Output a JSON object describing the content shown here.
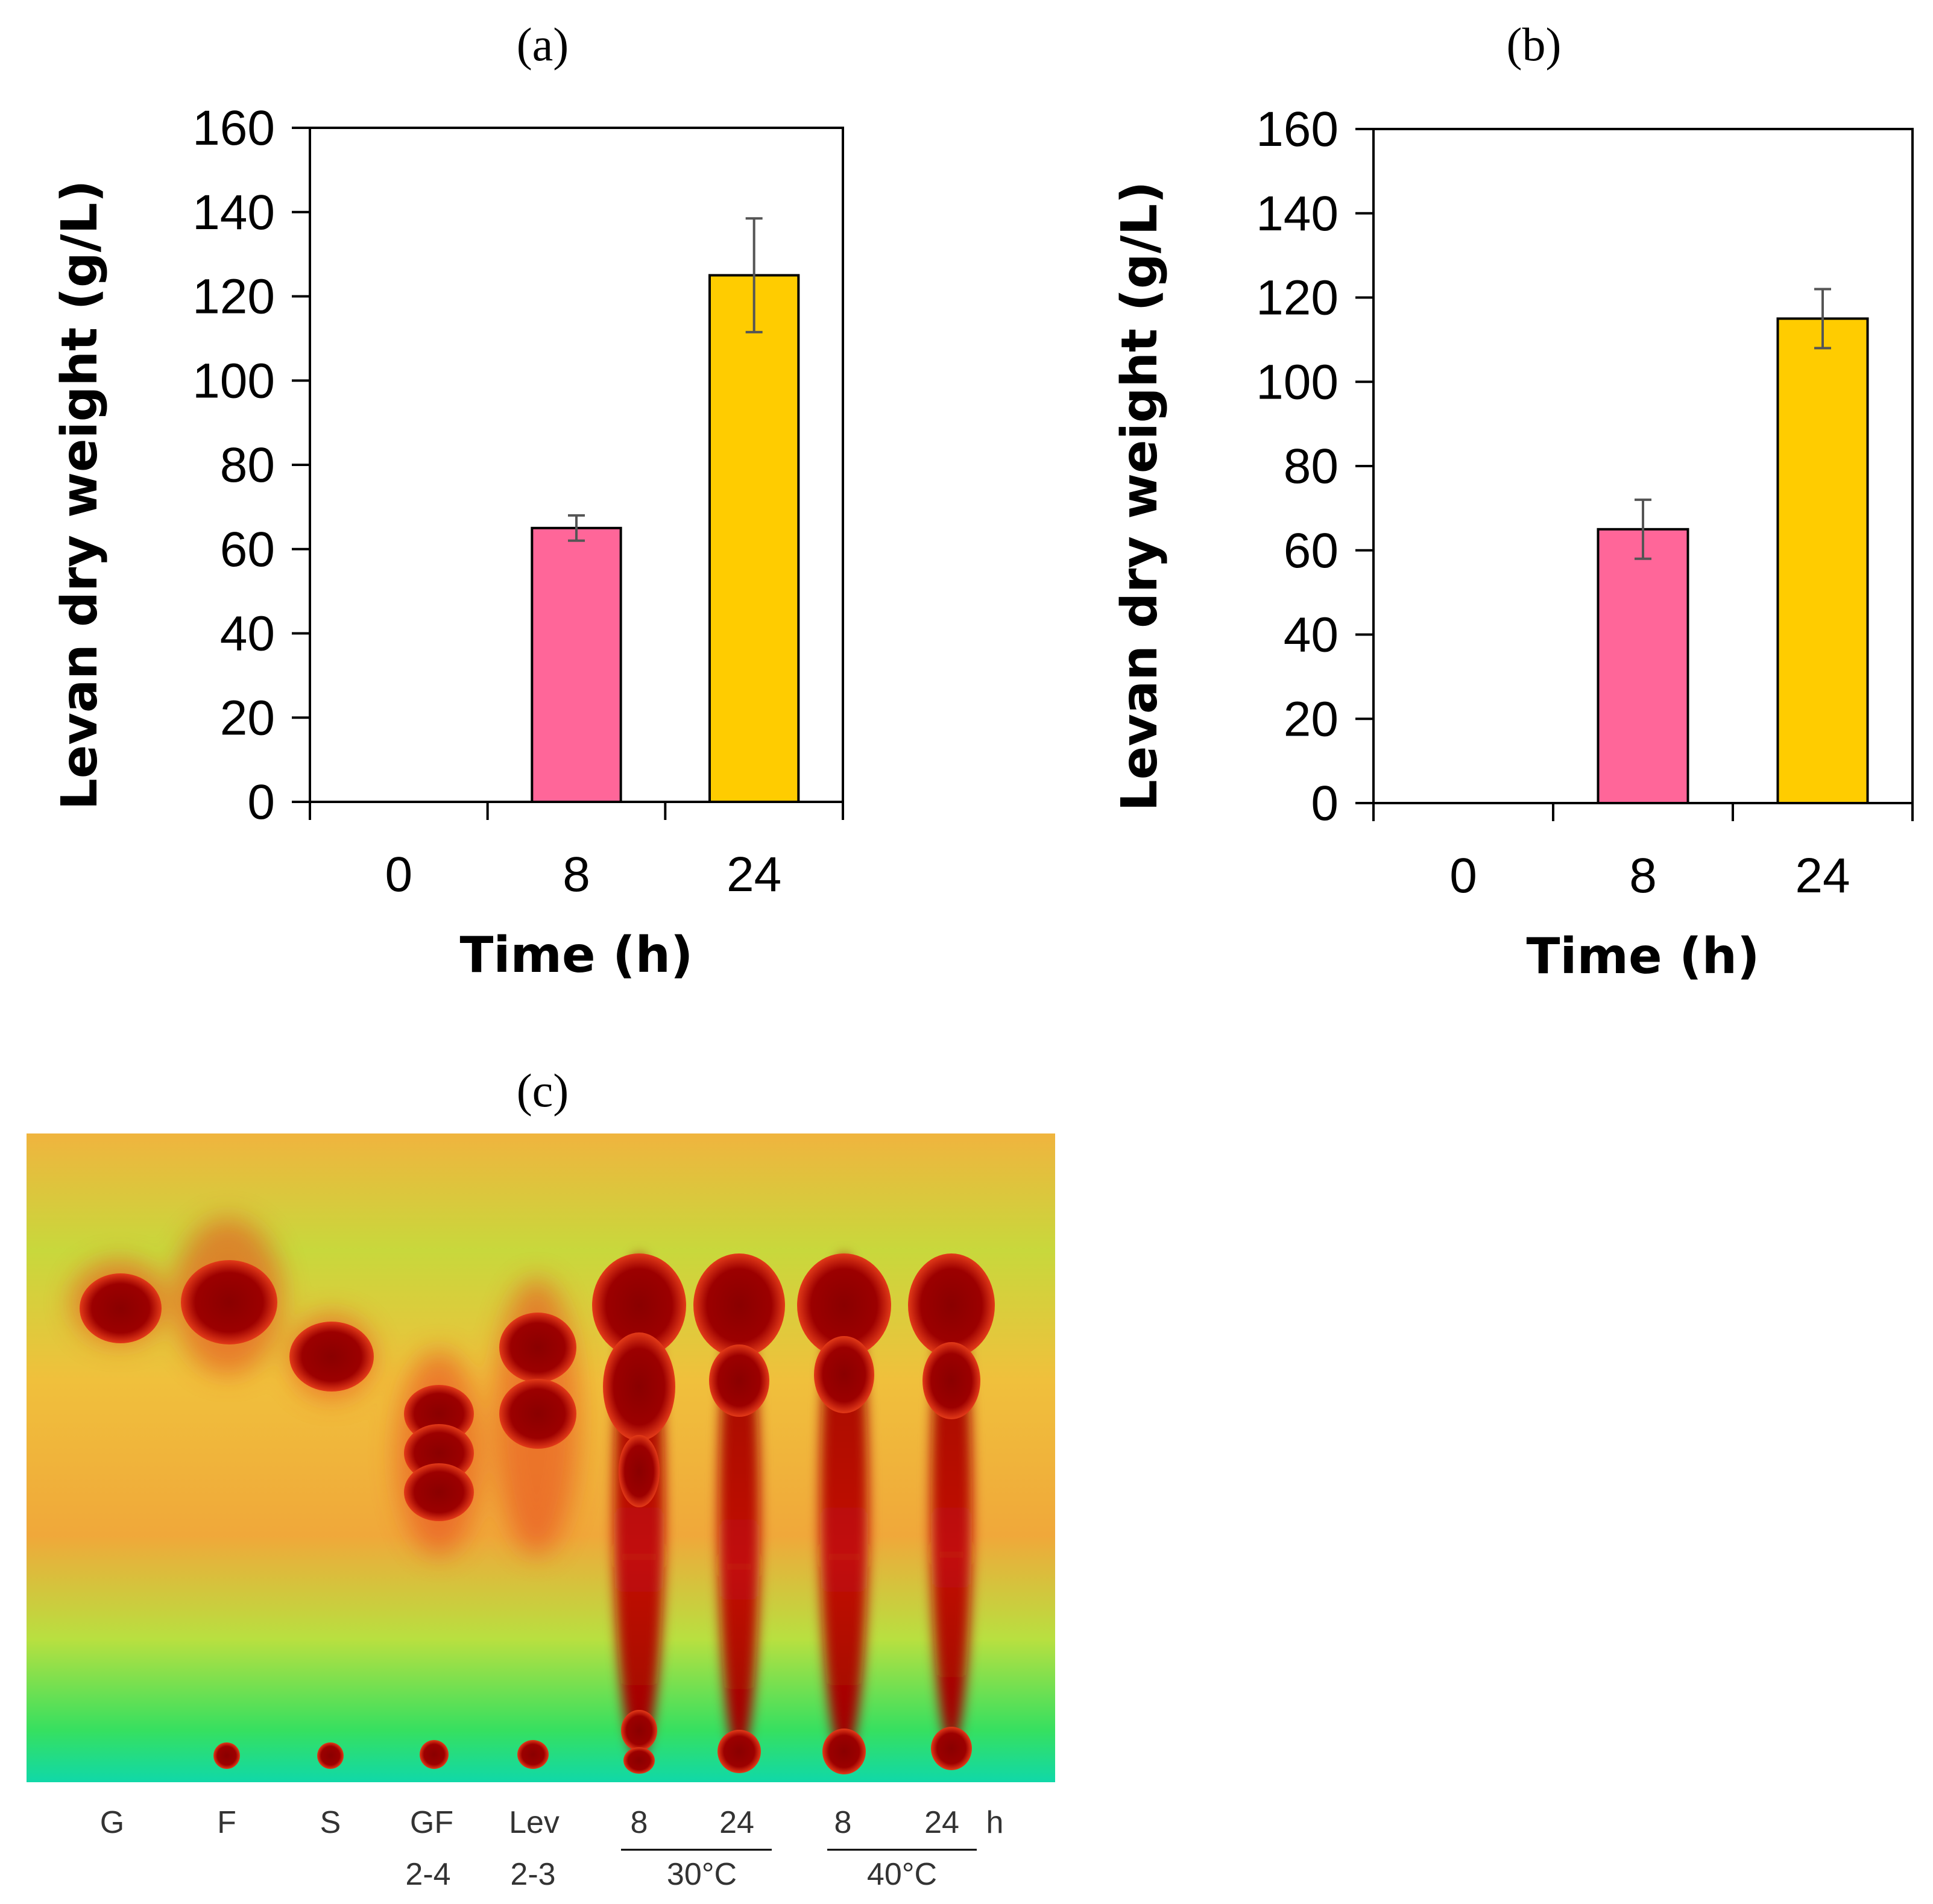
{
  "panels": {
    "a": {
      "label": "(a)"
    },
    "b": {
      "label": "(b)"
    },
    "c": {
      "label": "(c)"
    }
  },
  "chart_data": [
    {
      "id": "a",
      "type": "bar",
      "title": "(a)",
      "xlabel": "Time (h)",
      "ylabel": "Levan dry weight (g/L)",
      "categories": [
        "0",
        "8",
        "24"
      ],
      "values": [
        0,
        65,
        125
      ],
      "errors": [
        0,
        3,
        13.5
      ],
      "colors": [
        "#ff6699",
        "#ff6699",
        "#ffcc00"
      ],
      "ylim": [
        0,
        160
      ],
      "yticks": [
        "0",
        "20",
        "40",
        "60",
        "80",
        "100",
        "120",
        "140",
        "160"
      ],
      "grid": false,
      "legend": "none"
    },
    {
      "id": "b",
      "type": "bar",
      "title": "(b)",
      "xlabel": "Time (h)",
      "ylabel": "Levan dry weight (g/L)",
      "categories": [
        "0",
        "8",
        "24"
      ],
      "values": [
        0,
        65,
        115
      ],
      "errors": [
        0,
        7,
        7
      ],
      "colors": [
        "#ff6699",
        "#ff6699",
        "#ffcc00"
      ],
      "ylim": [
        0,
        160
      ],
      "yticks": [
        "0",
        "20",
        "40",
        "60",
        "80",
        "100",
        "120",
        "140",
        "160"
      ],
      "grid": false,
      "legend": "none"
    }
  ],
  "tlc": {
    "title": "(c)",
    "lanes": [
      {
        "top": "G",
        "bottom": ""
      },
      {
        "top": "F",
        "bottom": ""
      },
      {
        "top": "S",
        "bottom": ""
      },
      {
        "top": "GF",
        "bottom": "2-4"
      },
      {
        "top": "Lev",
        "bottom": "2-3"
      },
      {
        "top": "8",
        "bottom": ""
      },
      {
        "top": "24",
        "bottom": ""
      },
      {
        "top": "8",
        "bottom": ""
      },
      {
        "top": "24",
        "bottom": ""
      }
    ],
    "unit_label": "h",
    "groups": [
      {
        "label": "30°C"
      },
      {
        "label": "40°C"
      }
    ],
    "colors": {
      "background_top": "#f2c84b",
      "background_bottom": "#22e06a",
      "spot": "#8e0000",
      "halo": "#e2331a"
    }
  }
}
